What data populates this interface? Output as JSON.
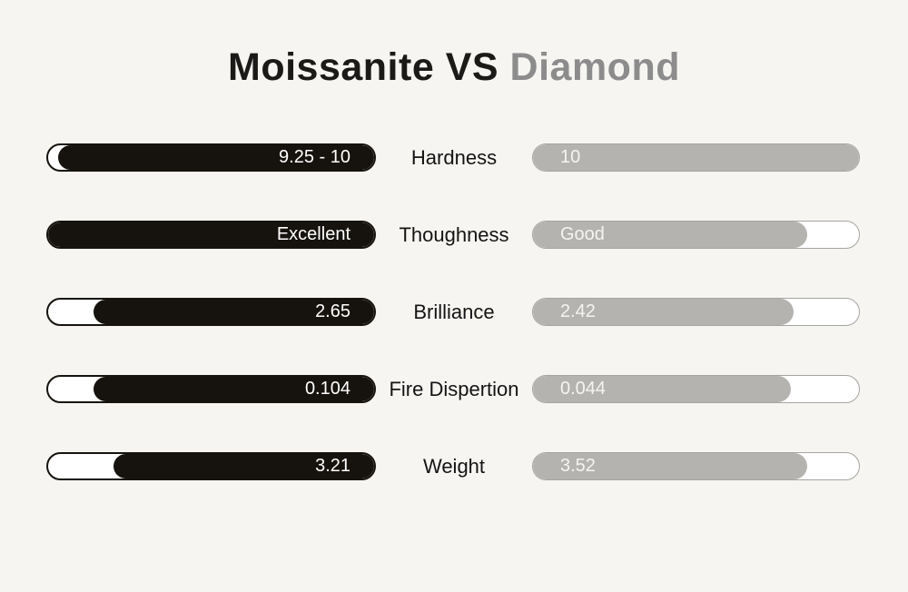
{
  "title": {
    "moissanite": "Moissanite",
    "vs": "VS",
    "diamond": "Diamond"
  },
  "colors": {
    "background": "#f7f5f2",
    "moissanite_bar": "#16130e",
    "diamond_bar": "#b5b3b0",
    "diamond_bar_border": "#a6a4a1",
    "title_diamond_text": "#8c8c8c",
    "bar_value_text": "#ffffff"
  },
  "chart_data": {
    "type": "bar",
    "orientation": "horizontal",
    "title": "Moissanite VS Diamond",
    "categories": [
      "Hardness",
      "Thoughness",
      "Brilliance",
      "Fire Dispertion",
      "Weight"
    ],
    "series": [
      {
        "name": "Moissanite",
        "color": "#16130e",
        "value_labels": [
          "9.25 - 10",
          "Excellent",
          "2.65",
          "0.104",
          "3.21"
        ],
        "fill_percent": [
          97,
          100,
          86,
          86,
          80
        ],
        "fill_anchor": "right"
      },
      {
        "name": "Diamond",
        "color": "#b5b3b0",
        "value_labels": [
          "10",
          "Good",
          "2.42",
          "0.044",
          "3.52"
        ],
        "fill_percent": [
          100,
          84,
          80,
          79,
          84
        ],
        "fill_anchor": "left"
      }
    ],
    "legend_position": "none",
    "grid": false
  }
}
